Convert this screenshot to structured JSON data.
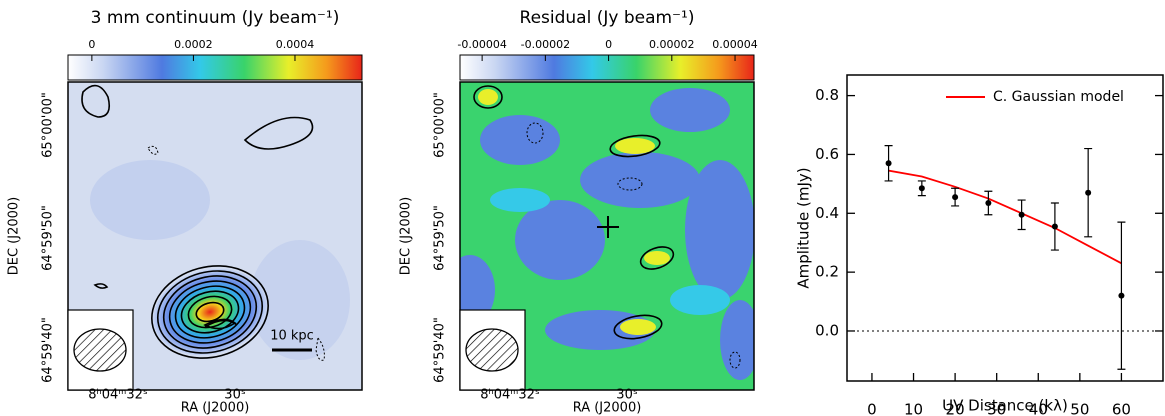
{
  "chart_data": [
    {
      "type": "image",
      "title": "3 mm continuum (Jy beam⁻¹)",
      "colorbar_ticks": [
        0,
        0.0002,
        0.0004
      ],
      "clim": [
        -4.7e-05,
        0.000532
      ],
      "xlabel": "RA (J2000)",
      "ylabel": "DEC (J2000)",
      "xtick_labels": [
        "8ʰ04ᵐ32ˢ",
        "30ˢ"
      ],
      "ytick_labels": [
        "65°00'00\"",
        "64°59'50\"",
        "64°59'40\""
      ],
      "annotation": "10 kpc"
    },
    {
      "type": "image",
      "title": "Residual (Jy beam⁻¹)",
      "colorbar_ticks": [
        -4e-05,
        -2e-05,
        0,
        2e-05,
        4e-05
      ],
      "clim": [
        -4.7e-05,
        4.6e-05
      ],
      "xlabel": "RA (J2000)",
      "ylabel": "DEC (J2000)",
      "xtick_labels": [
        "8ʰ04ᵐ32ˢ",
        "30ˢ"
      ],
      "ytick_labels": [
        "65°00'00\"",
        "64°59'50\"",
        "64°59'40\""
      ]
    },
    {
      "type": "scatter",
      "xlabel": "UV Distance (kλ)",
      "ylabel": "Amplitude (mJy)",
      "xlim": [
        -6,
        70
      ],
      "ylim": [
        -0.17,
        0.87
      ],
      "xticks": [
        0,
        10,
        20,
        30,
        40,
        50,
        60
      ],
      "yticks": [
        {
          "value": 0,
          "label": "0.0"
        },
        {
          "value": 0.2,
          "label": "0.2"
        },
        {
          "value": 0.4,
          "label": "0.4"
        },
        {
          "value": 0.6,
          "label": "0.6"
        },
        {
          "value": 0.8,
          "label": "0.8"
        }
      ],
      "hline": 0,
      "points": {
        "color": "#000000",
        "x": [
          4,
          12,
          20,
          28,
          36,
          44,
          52,
          60
        ],
        "values": [
          0.57,
          0.485,
          0.455,
          0.435,
          0.395,
          0.355,
          0.47,
          0.12
        ],
        "errors": [
          0.06,
          0.025,
          0.03,
          0.04,
          0.05,
          0.08,
          0.15,
          0.25
        ]
      },
      "model": {
        "name": "C. Gaussian model",
        "color": "#ff0000",
        "x": [
          4,
          12,
          20,
          28,
          36,
          44,
          52,
          60
        ],
        "values": [
          0.545,
          0.525,
          0.49,
          0.45,
          0.4,
          0.35,
          0.29,
          0.23
        ]
      }
    }
  ]
}
